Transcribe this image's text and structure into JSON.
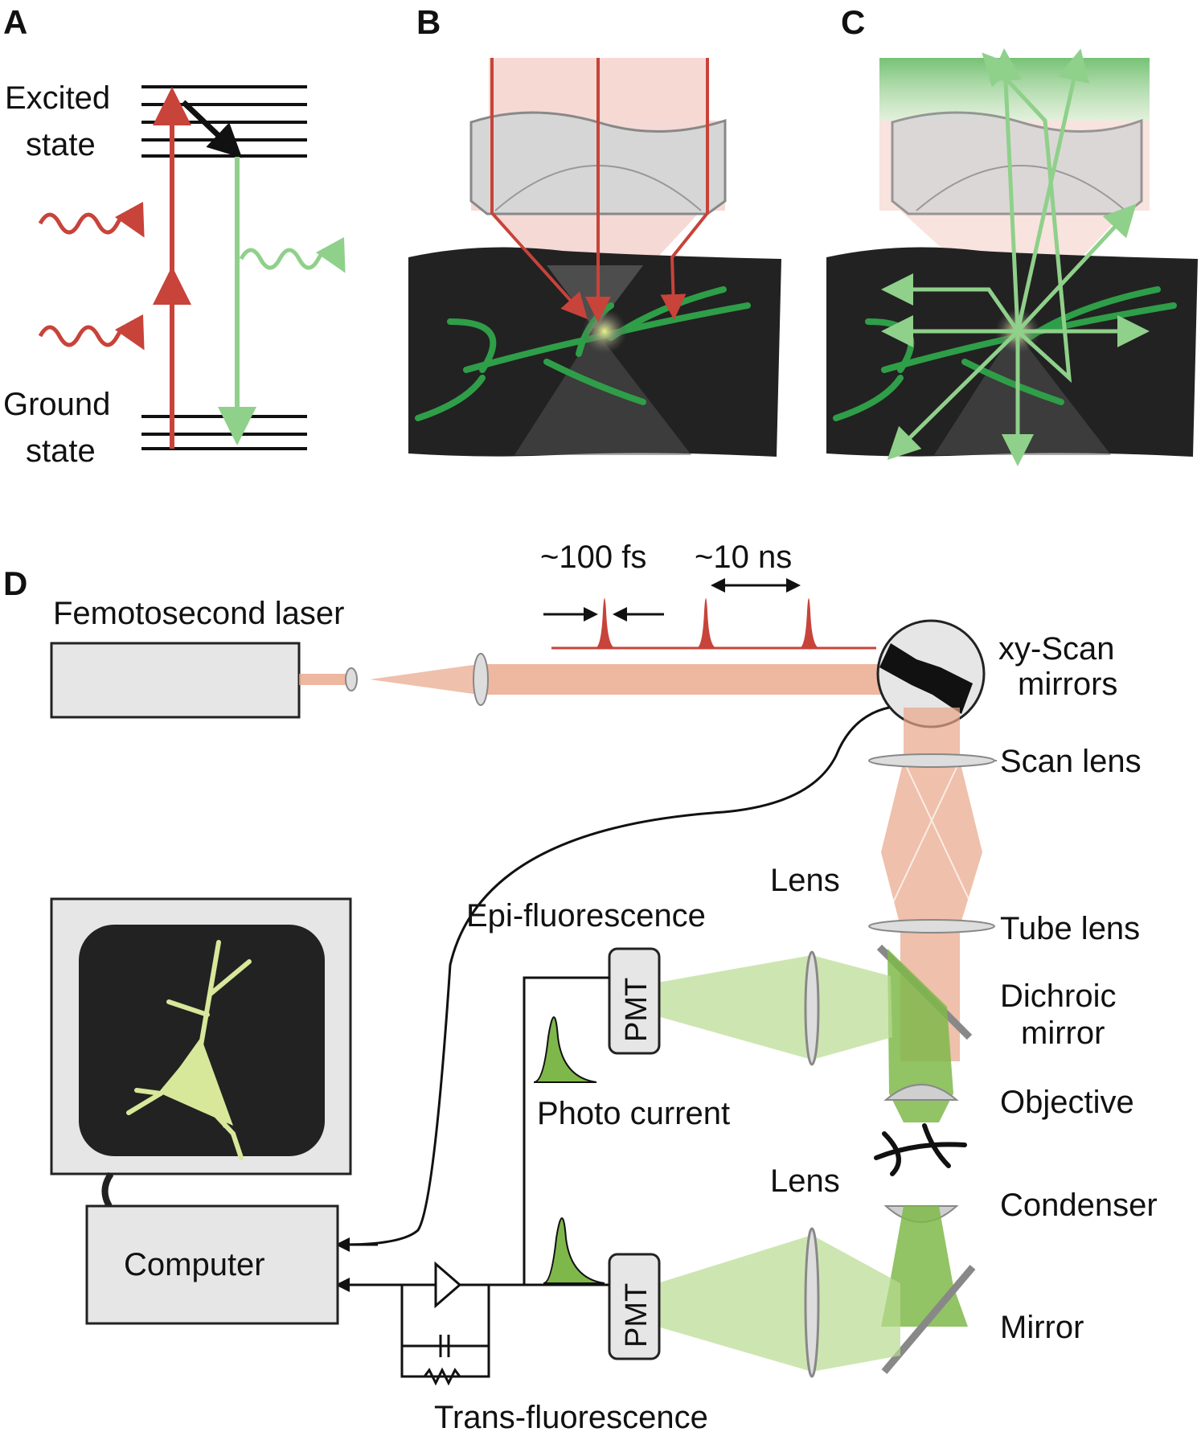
{
  "panels": {
    "a": "A",
    "b": "B",
    "c": "C",
    "d": "D"
  },
  "panel_a": {
    "excited_line1": "Excited",
    "excited_line2": "state",
    "ground_line1": "Ground",
    "ground_line2": "state"
  },
  "panel_d": {
    "laser": "Femotosecond laser",
    "pulse_width": "~100 fs",
    "pulse_period": "~10 ns",
    "scan_mirrors_line1": "xy-Scan",
    "scan_mirrors_line2": "mirrors",
    "scan_lens": "Scan lens",
    "tube_lens": "Tube lens",
    "dichroic_line1": "Dichroic",
    "dichroic_line2": "mirror",
    "objective": "Objective",
    "condenser": "Condenser",
    "mirror": "Mirror",
    "lens_top": "Lens",
    "lens_bottom": "Lens",
    "epi": "Epi-fluorescence",
    "trans": "Trans-fluorescence",
    "photo_current": "Photo current",
    "pmt_top": "PMT",
    "pmt_bottom": "PMT",
    "computer": "Computer"
  },
  "colors": {
    "excitation_red": "#c8433a",
    "emission_green": "#7cc576",
    "neuron_green": "#2f9e48",
    "tissue": "#222222",
    "laser_beam": "#e8a588",
    "panel_gray": "#e6e6e6"
  }
}
